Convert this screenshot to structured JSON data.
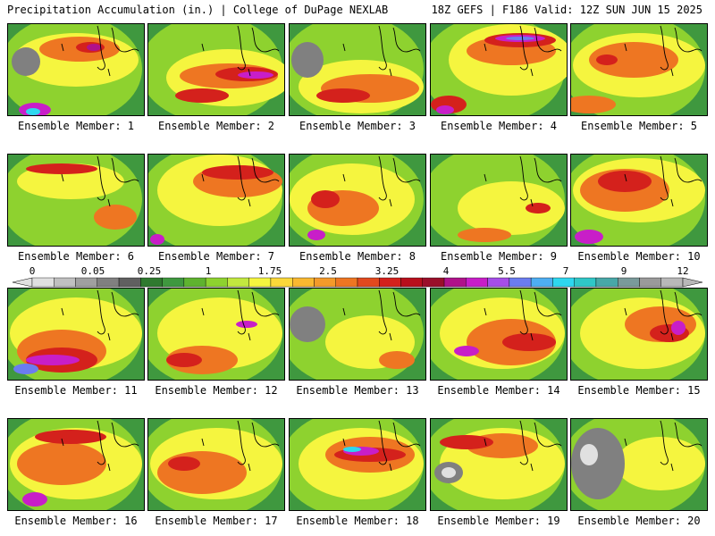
{
  "header": {
    "left": "Precipitation Accumulation (in.) | College of DuPage NEXLAB",
    "right": "18Z GEFS | F186 Valid: 12Z SUN JUN 15 2025"
  },
  "colorbar": {
    "tick_labels": [
      "0",
      "0.05",
      "0.25",
      "1",
      "1.75",
      "2.5",
      "3.25",
      "4",
      "5.5",
      "7",
      "9",
      "12"
    ],
    "colors": [
      "#e0e0e0",
      "#c0c0c0",
      "#a0a0a0",
      "#808080",
      "#606060",
      "#2f7a2f",
      "#3f983f",
      "#5fb32f",
      "#8ed22f",
      "#c2e83f",
      "#f5f53f",
      "#fbd83a",
      "#f9b830",
      "#f49a2a",
      "#ee7622",
      "#e2491e",
      "#d4211c",
      "#b80f1c",
      "#9a0f2a",
      "#b0128a",
      "#c81ec8",
      "#a64ee8",
      "#6b7cf0",
      "#4eaef2",
      "#2ed7ef",
      "#2fc7c7",
      "#48a8a8",
      "#7a9a9a",
      "#9a9a9a",
      "#b8b8b8"
    ]
  },
  "members": [
    {
      "caption": "Ensemble Member: 1"
    },
    {
      "caption": "Ensemble Member: 2"
    },
    {
      "caption": "Ensemble Member: 3"
    },
    {
      "caption": "Ensemble Member: 4"
    },
    {
      "caption": "Ensemble Member: 5"
    },
    {
      "caption": "Ensemble Member: 6"
    },
    {
      "caption": "Ensemble Member: 7"
    },
    {
      "caption": "Ensemble Member: 8"
    },
    {
      "caption": "Ensemble Member: 9"
    },
    {
      "caption": "Ensemble Member: 10"
    },
    {
      "caption": "Ensemble Member: 11"
    },
    {
      "caption": "Ensemble Member: 12"
    },
    {
      "caption": "Ensemble Member: 13"
    },
    {
      "caption": "Ensemble Member: 14"
    },
    {
      "caption": "Ensemble Member: 15"
    },
    {
      "caption": "Ensemble Member: 16"
    },
    {
      "caption": "Ensemble Member: 17"
    },
    {
      "caption": "Ensemble Member: 18"
    },
    {
      "caption": "Ensemble Member: 19"
    },
    {
      "caption": "Ensemble Member: 20"
    }
  ]
}
